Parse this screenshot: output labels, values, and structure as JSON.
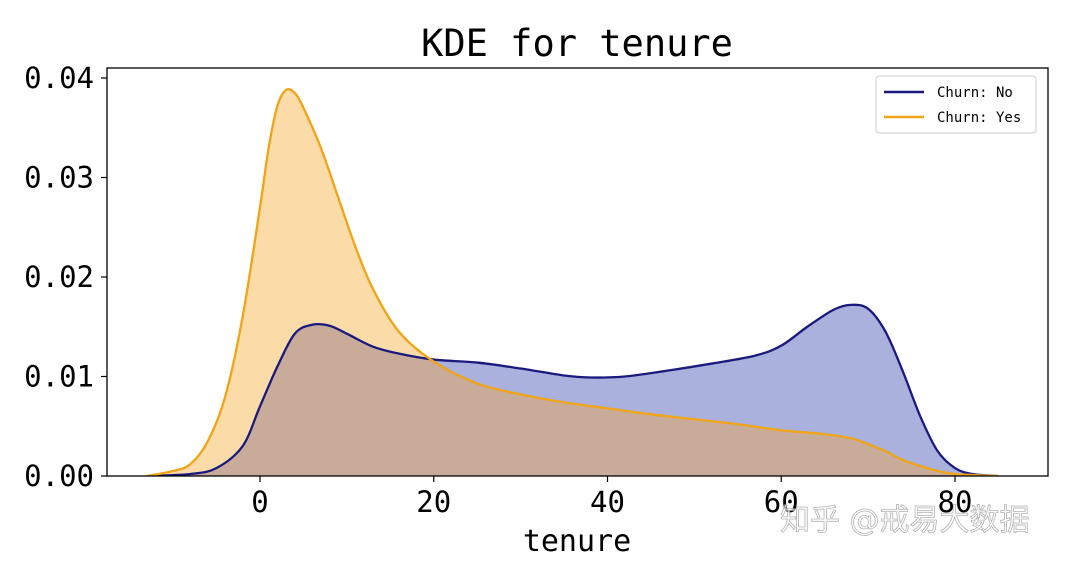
{
  "chart_data": {
    "type": "area",
    "title": "KDE for tenure",
    "xlabel": "tenure",
    "ylabel": "",
    "xlim": [
      -16,
      87
    ],
    "ylim": [
      0,
      0.041
    ],
    "xticks": [
      0,
      20,
      40,
      60,
      80
    ],
    "xtick_labels": [
      "0",
      "20",
      "40",
      "60",
      "80"
    ],
    "yticks": [
      0,
      0.01,
      0.02,
      0.03,
      0.04
    ],
    "ytick_labels": [
      "0.00",
      "0.01",
      "0.02",
      "0.03",
      "0.04"
    ],
    "grid": false,
    "legend_position": "top-right",
    "series": [
      {
        "name": "Churn: No",
        "color": "#1a1a7e",
        "fill": "#a9b1dc",
        "x": [
          -13,
          -8,
          -5,
          -2,
          0,
          2,
          4,
          6,
          8,
          10,
          13,
          16,
          20,
          25,
          30,
          35,
          38,
          42,
          47,
          52,
          57,
          60,
          63,
          66,
          68,
          70,
          72,
          74,
          76,
          78,
          80,
          82,
          85
        ],
        "values": [
          0.0,
          0.0002,
          0.0008,
          0.003,
          0.007,
          0.011,
          0.0143,
          0.0152,
          0.0151,
          0.0143,
          0.013,
          0.0123,
          0.0117,
          0.0114,
          0.0108,
          0.0101,
          0.0099,
          0.01,
          0.0106,
          0.0113,
          0.0121,
          0.0131,
          0.015,
          0.0167,
          0.0172,
          0.0168,
          0.0145,
          0.0105,
          0.006,
          0.0025,
          0.0008,
          0.0002,
          0.0
        ]
      },
      {
        "name": "Churn: Yes",
        "color": "#f0a416",
        "fill": "#fbdca8",
        "x": [
          -13,
          -10,
          -8,
          -6,
          -4,
          -2,
          0,
          1,
          2,
          3,
          4,
          5,
          7,
          9,
          11,
          13,
          16,
          20,
          25,
          30,
          35,
          40,
          45,
          50,
          55,
          60,
          65,
          68,
          70,
          72,
          74,
          76,
          78,
          80,
          82,
          85
        ],
        "values": [
          0.0,
          0.0005,
          0.0012,
          0.0035,
          0.008,
          0.016,
          0.027,
          0.033,
          0.0372,
          0.0388,
          0.0385,
          0.037,
          0.033,
          0.028,
          0.023,
          0.0188,
          0.0145,
          0.0115,
          0.0093,
          0.0082,
          0.0074,
          0.0068,
          0.0062,
          0.0057,
          0.0052,
          0.0046,
          0.0042,
          0.0038,
          0.0032,
          0.0025,
          0.0016,
          0.001,
          0.0005,
          0.0002,
          0.0001,
          0.0
        ]
      }
    ],
    "overlap_fill": "#c9ab9a"
  },
  "watermark": {
    "text": "知乎 @戒易大数据"
  }
}
